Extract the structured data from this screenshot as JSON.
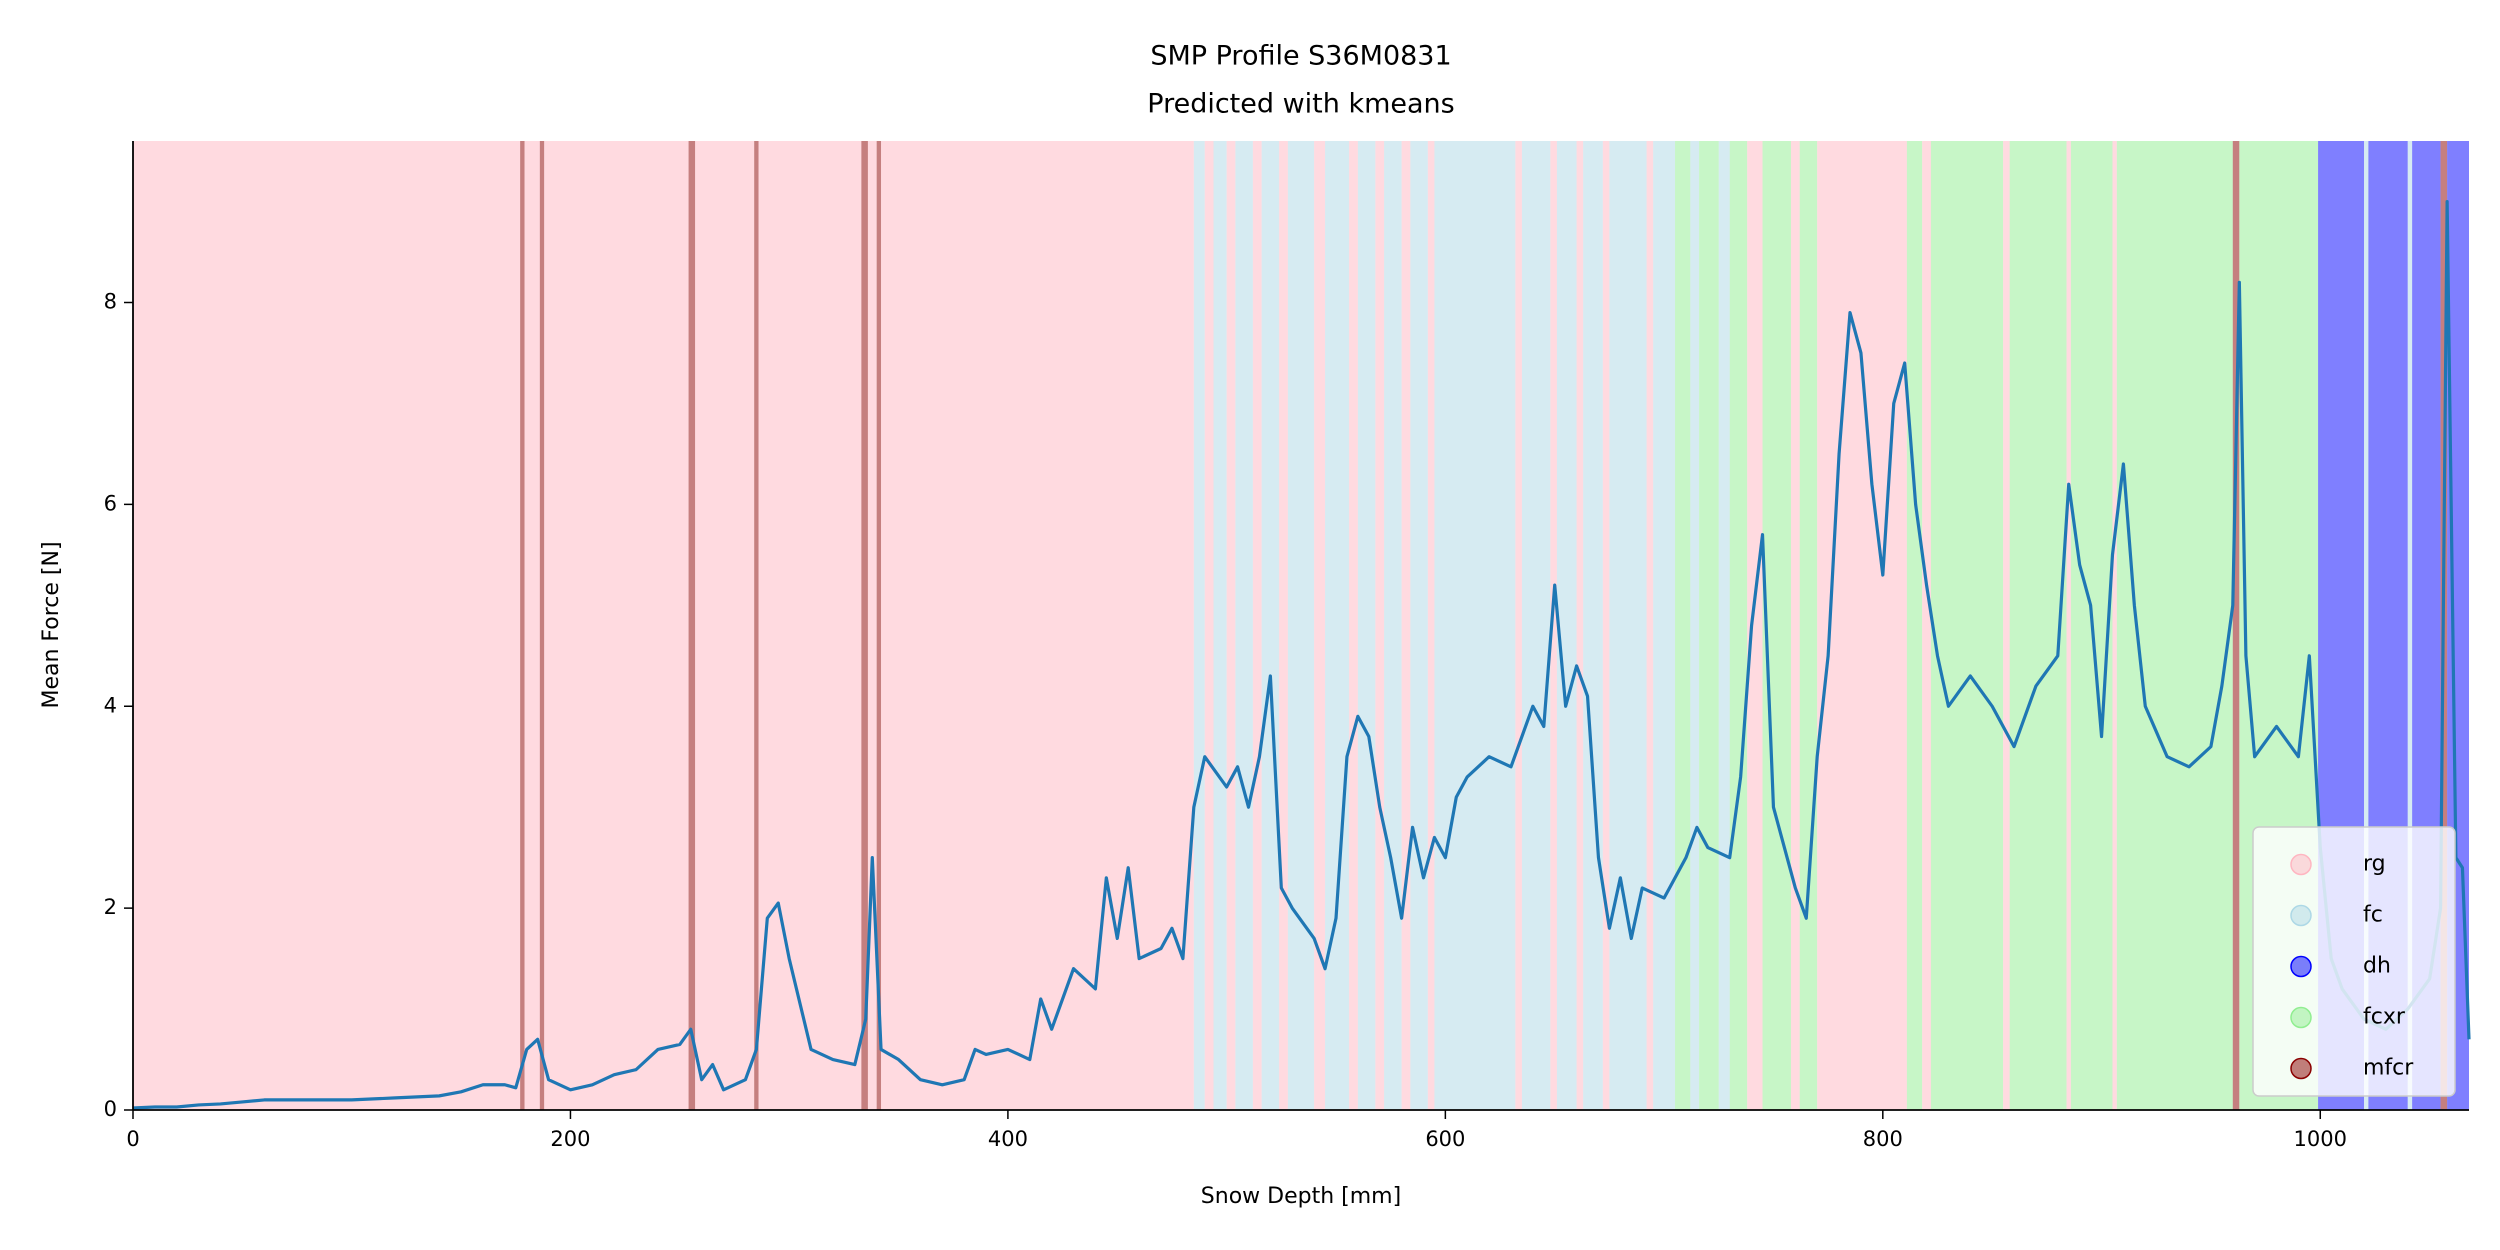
{
  "chart_data": {
    "type": "line",
    "title": "SMP Profile S36M0831",
    "subtitle": "Predicted with kmeans",
    "x_label": "Snow Depth [mm]",
    "y_label": "Mean Force [N]",
    "xlim": [
      0,
      1068
    ],
    "ylim": [
      0,
      9.6
    ],
    "xticks": [
      0,
      200,
      400,
      600,
      800,
      1000
    ],
    "yticks": [
      0,
      2,
      4,
      6,
      8
    ],
    "color": "#1f77b4",
    "legend": "lower right",
    "classes": [
      {
        "name": "rg",
        "color": "#ffb6c1"
      },
      {
        "name": "fc",
        "color": "#add8e6"
      },
      {
        "name": "dh",
        "color": "#0000ff"
      },
      {
        "name": "fcxr",
        "color": "#90ee90"
      },
      {
        "name": "mfcr",
        "color": "#8b0000"
      }
    ],
    "segments": [
      {
        "start": 0,
        "end": 177,
        "class": "rg"
      },
      {
        "start": 177,
        "end": 179,
        "class": "mfcr"
      },
      {
        "start": 179,
        "end": 186,
        "class": "rg"
      },
      {
        "start": 186,
        "end": 188,
        "class": "mfcr"
      },
      {
        "start": 188,
        "end": 254,
        "class": "rg"
      },
      {
        "start": 254,
        "end": 257,
        "class": "mfcr"
      },
      {
        "start": 257,
        "end": 284,
        "class": "rg"
      },
      {
        "start": 284,
        "end": 286,
        "class": "mfcr"
      },
      {
        "start": 286,
        "end": 333,
        "class": "rg"
      },
      {
        "start": 333,
        "end": 336,
        "class": "mfcr"
      },
      {
        "start": 336,
        "end": 340,
        "class": "rg"
      },
      {
        "start": 340,
        "end": 342,
        "class": "mfcr"
      },
      {
        "start": 342,
        "end": 485,
        "class": "rg"
      },
      {
        "start": 485,
        "end": 490,
        "class": "fc"
      },
      {
        "start": 490,
        "end": 494,
        "class": "rg"
      },
      {
        "start": 494,
        "end": 500,
        "class": "fc"
      },
      {
        "start": 500,
        "end": 504,
        "class": "rg"
      },
      {
        "start": 504,
        "end": 512,
        "class": "fc"
      },
      {
        "start": 512,
        "end": 516,
        "class": "rg"
      },
      {
        "start": 516,
        "end": 524,
        "class": "fc"
      },
      {
        "start": 524,
        "end": 528,
        "class": "rg"
      },
      {
        "start": 528,
        "end": 540,
        "class": "fc"
      },
      {
        "start": 540,
        "end": 545,
        "class": "rg"
      },
      {
        "start": 545,
        "end": 556,
        "class": "fc"
      },
      {
        "start": 556,
        "end": 560,
        "class": "rg"
      },
      {
        "start": 560,
        "end": 568,
        "class": "fc"
      },
      {
        "start": 568,
        "end": 572,
        "class": "rg"
      },
      {
        "start": 572,
        "end": 580,
        "class": "fc"
      },
      {
        "start": 580,
        "end": 584,
        "class": "rg"
      },
      {
        "start": 584,
        "end": 592,
        "class": "fc"
      },
      {
        "start": 592,
        "end": 595,
        "class": "rg"
      },
      {
        "start": 595,
        "end": 632,
        "class": "fc"
      },
      {
        "start": 632,
        "end": 635,
        "class": "rg"
      },
      {
        "start": 635,
        "end": 648,
        "class": "fc"
      },
      {
        "start": 648,
        "end": 651,
        "class": "rg"
      },
      {
        "start": 651,
        "end": 660,
        "class": "fc"
      },
      {
        "start": 660,
        "end": 663,
        "class": "rg"
      },
      {
        "start": 663,
        "end": 672,
        "class": "fc"
      },
      {
        "start": 672,
        "end": 675,
        "class": "rg"
      },
      {
        "start": 675,
        "end": 692,
        "class": "fc"
      },
      {
        "start": 692,
        "end": 695,
        "class": "rg"
      },
      {
        "start": 695,
        "end": 705,
        "class": "fc"
      },
      {
        "start": 705,
        "end": 712,
        "class": "fcxr"
      },
      {
        "start": 712,
        "end": 716,
        "class": "fc"
      },
      {
        "start": 716,
        "end": 725,
        "class": "fcxr"
      },
      {
        "start": 725,
        "end": 730,
        "class": "fc"
      },
      {
        "start": 730,
        "end": 738,
        "class": "fcxr"
      },
      {
        "start": 738,
        "end": 745,
        "class": "rg"
      },
      {
        "start": 745,
        "end": 758,
        "class": "fcxr"
      },
      {
        "start": 758,
        "end": 762,
        "class": "rg"
      },
      {
        "start": 762,
        "end": 770,
        "class": "fcxr"
      },
      {
        "start": 770,
        "end": 811,
        "class": "rg"
      },
      {
        "start": 811,
        "end": 818,
        "class": "fcxr"
      },
      {
        "start": 818,
        "end": 822,
        "class": "rg"
      },
      {
        "start": 822,
        "end": 855,
        "class": "fcxr"
      },
      {
        "start": 855,
        "end": 858,
        "class": "rg"
      },
      {
        "start": 858,
        "end": 884,
        "class": "fcxr"
      },
      {
        "start": 884,
        "end": 886,
        "class": "rg"
      },
      {
        "start": 886,
        "end": 905,
        "class": "fcxr"
      },
      {
        "start": 905,
        "end": 907,
        "class": "rg"
      },
      {
        "start": 907,
        "end": 960,
        "class": "fcxr"
      },
      {
        "start": 960,
        "end": 963,
        "class": "mfcr"
      },
      {
        "start": 963,
        "end": 999,
        "class": "fcxr"
      },
      {
        "start": 999,
        "end": 1020,
        "class": "dh"
      },
      {
        "start": 1020,
        "end": 1022,
        "class": "fc"
      },
      {
        "start": 1022,
        "end": 1040,
        "class": "dh"
      },
      {
        "start": 1040,
        "end": 1042,
        "class": "fc"
      },
      {
        "start": 1042,
        "end": 1055,
        "class": "dh"
      },
      {
        "start": 1055,
        "end": 1058,
        "class": "mfcr"
      },
      {
        "start": 1058,
        "end": 1068,
        "class": "dh"
      }
    ],
    "x": [
      0,
      10,
      20,
      30,
      40,
      50,
      60,
      70,
      80,
      90,
      100,
      110,
      120,
      130,
      140,
      150,
      160,
      170,
      175,
      180,
      185,
      190,
      200,
      210,
      220,
      230,
      240,
      250,
      255,
      260,
      265,
      270,
      280,
      285,
      290,
      295,
      300,
      310,
      320,
      330,
      335,
      338,
      342,
      350,
      360,
      370,
      380,
      385,
      390,
      400,
      410,
      415,
      420,
      430,
      440,
      445,
      450,
      455,
      460,
      470,
      475,
      480,
      485,
      490,
      500,
      505,
      510,
      515,
      520,
      525,
      530,
      540,
      545,
      550,
      555,
      560,
      565,
      570,
      575,
      580,
      585,
      590,
      595,
      600,
      605,
      610,
      620,
      630,
      640,
      645,
      650,
      655,
      660,
      665,
      670,
      675,
      680,
      685,
      690,
      700,
      710,
      715,
      720,
      730,
      735,
      740,
      745,
      750,
      760,
      765,
      770,
      775,
      780,
      785,
      790,
      795,
      800,
      805,
      810,
      815,
      820,
      825,
      830,
      840,
      850,
      860,
      870,
      880,
      885,
      890,
      895,
      900,
      905,
      910,
      915,
      920,
      930,
      940,
      950,
      955,
      960,
      963,
      966,
      970,
      980,
      990,
      995,
      1000,
      1005,
      1010,
      1020,
      1030,
      1040,
      1050,
      1055,
      1058,
      1062,
      1065,
      1068
    ],
    "values": [
      0.02,
      0.03,
      0.03,
      0.05,
      0.06,
      0.08,
      0.1,
      0.1,
      0.1,
      0.1,
      0.1,
      0.11,
      0.12,
      0.13,
      0.14,
      0.18,
      0.25,
      0.25,
      0.22,
      0.6,
      0.7,
      0.3,
      0.2,
      0.25,
      0.35,
      0.4,
      0.6,
      0.65,
      0.8,
      0.3,
      0.45,
      0.2,
      0.3,
      0.6,
      1.9,
      2.05,
      1.5,
      0.6,
      0.5,
      0.45,
      0.9,
      2.5,
      0.6,
      0.5,
      0.3,
      0.25,
      0.3,
      0.6,
      0.55,
      0.6,
      0.5,
      1.1,
      0.8,
      1.4,
      1.2,
      2.3,
      1.7,
      2.4,
      1.5,
      1.6,
      1.8,
      1.5,
      3.0,
      3.5,
      3.2,
      3.4,
      3.0,
      3.5,
      4.3,
      2.2,
      2.0,
      1.7,
      1.4,
      1.9,
      3.5,
      3.9,
      3.7,
      3.0,
      2.5,
      1.9,
      2.8,
      2.3,
      2.7,
      2.5,
      3.1,
      3.3,
      3.5,
      3.4,
      4.0,
      3.8,
      5.2,
      4.0,
      4.4,
      4.1,
      2.5,
      1.8,
      2.3,
      1.7,
      2.2,
      2.1,
      2.5,
      2.8,
      2.6,
      2.5,
      3.3,
      4.8,
      5.7,
      3.0,
      2.2,
      1.9,
      3.5,
      4.5,
      6.5,
      7.9,
      7.5,
      6.2,
      5.3,
      7.0,
      7.4,
      6.0,
      5.2,
      4.5,
      4.0,
      4.3,
      4.0,
      3.6,
      4.2,
      4.5,
      6.2,
      5.4,
      5.0,
      3.7,
      5.5,
      6.4,
      5.0,
      4.0,
      3.5,
      3.4,
      3.6,
      4.2,
      5.0,
      8.2,
      4.5,
      3.5,
      3.8,
      3.5,
      4.5,
      2.6,
      1.5,
      1.2,
      0.9,
      0.8,
      1.0,
      1.3,
      2.0,
      9.0,
      2.5,
      2.4,
      0.7
    ]
  }
}
